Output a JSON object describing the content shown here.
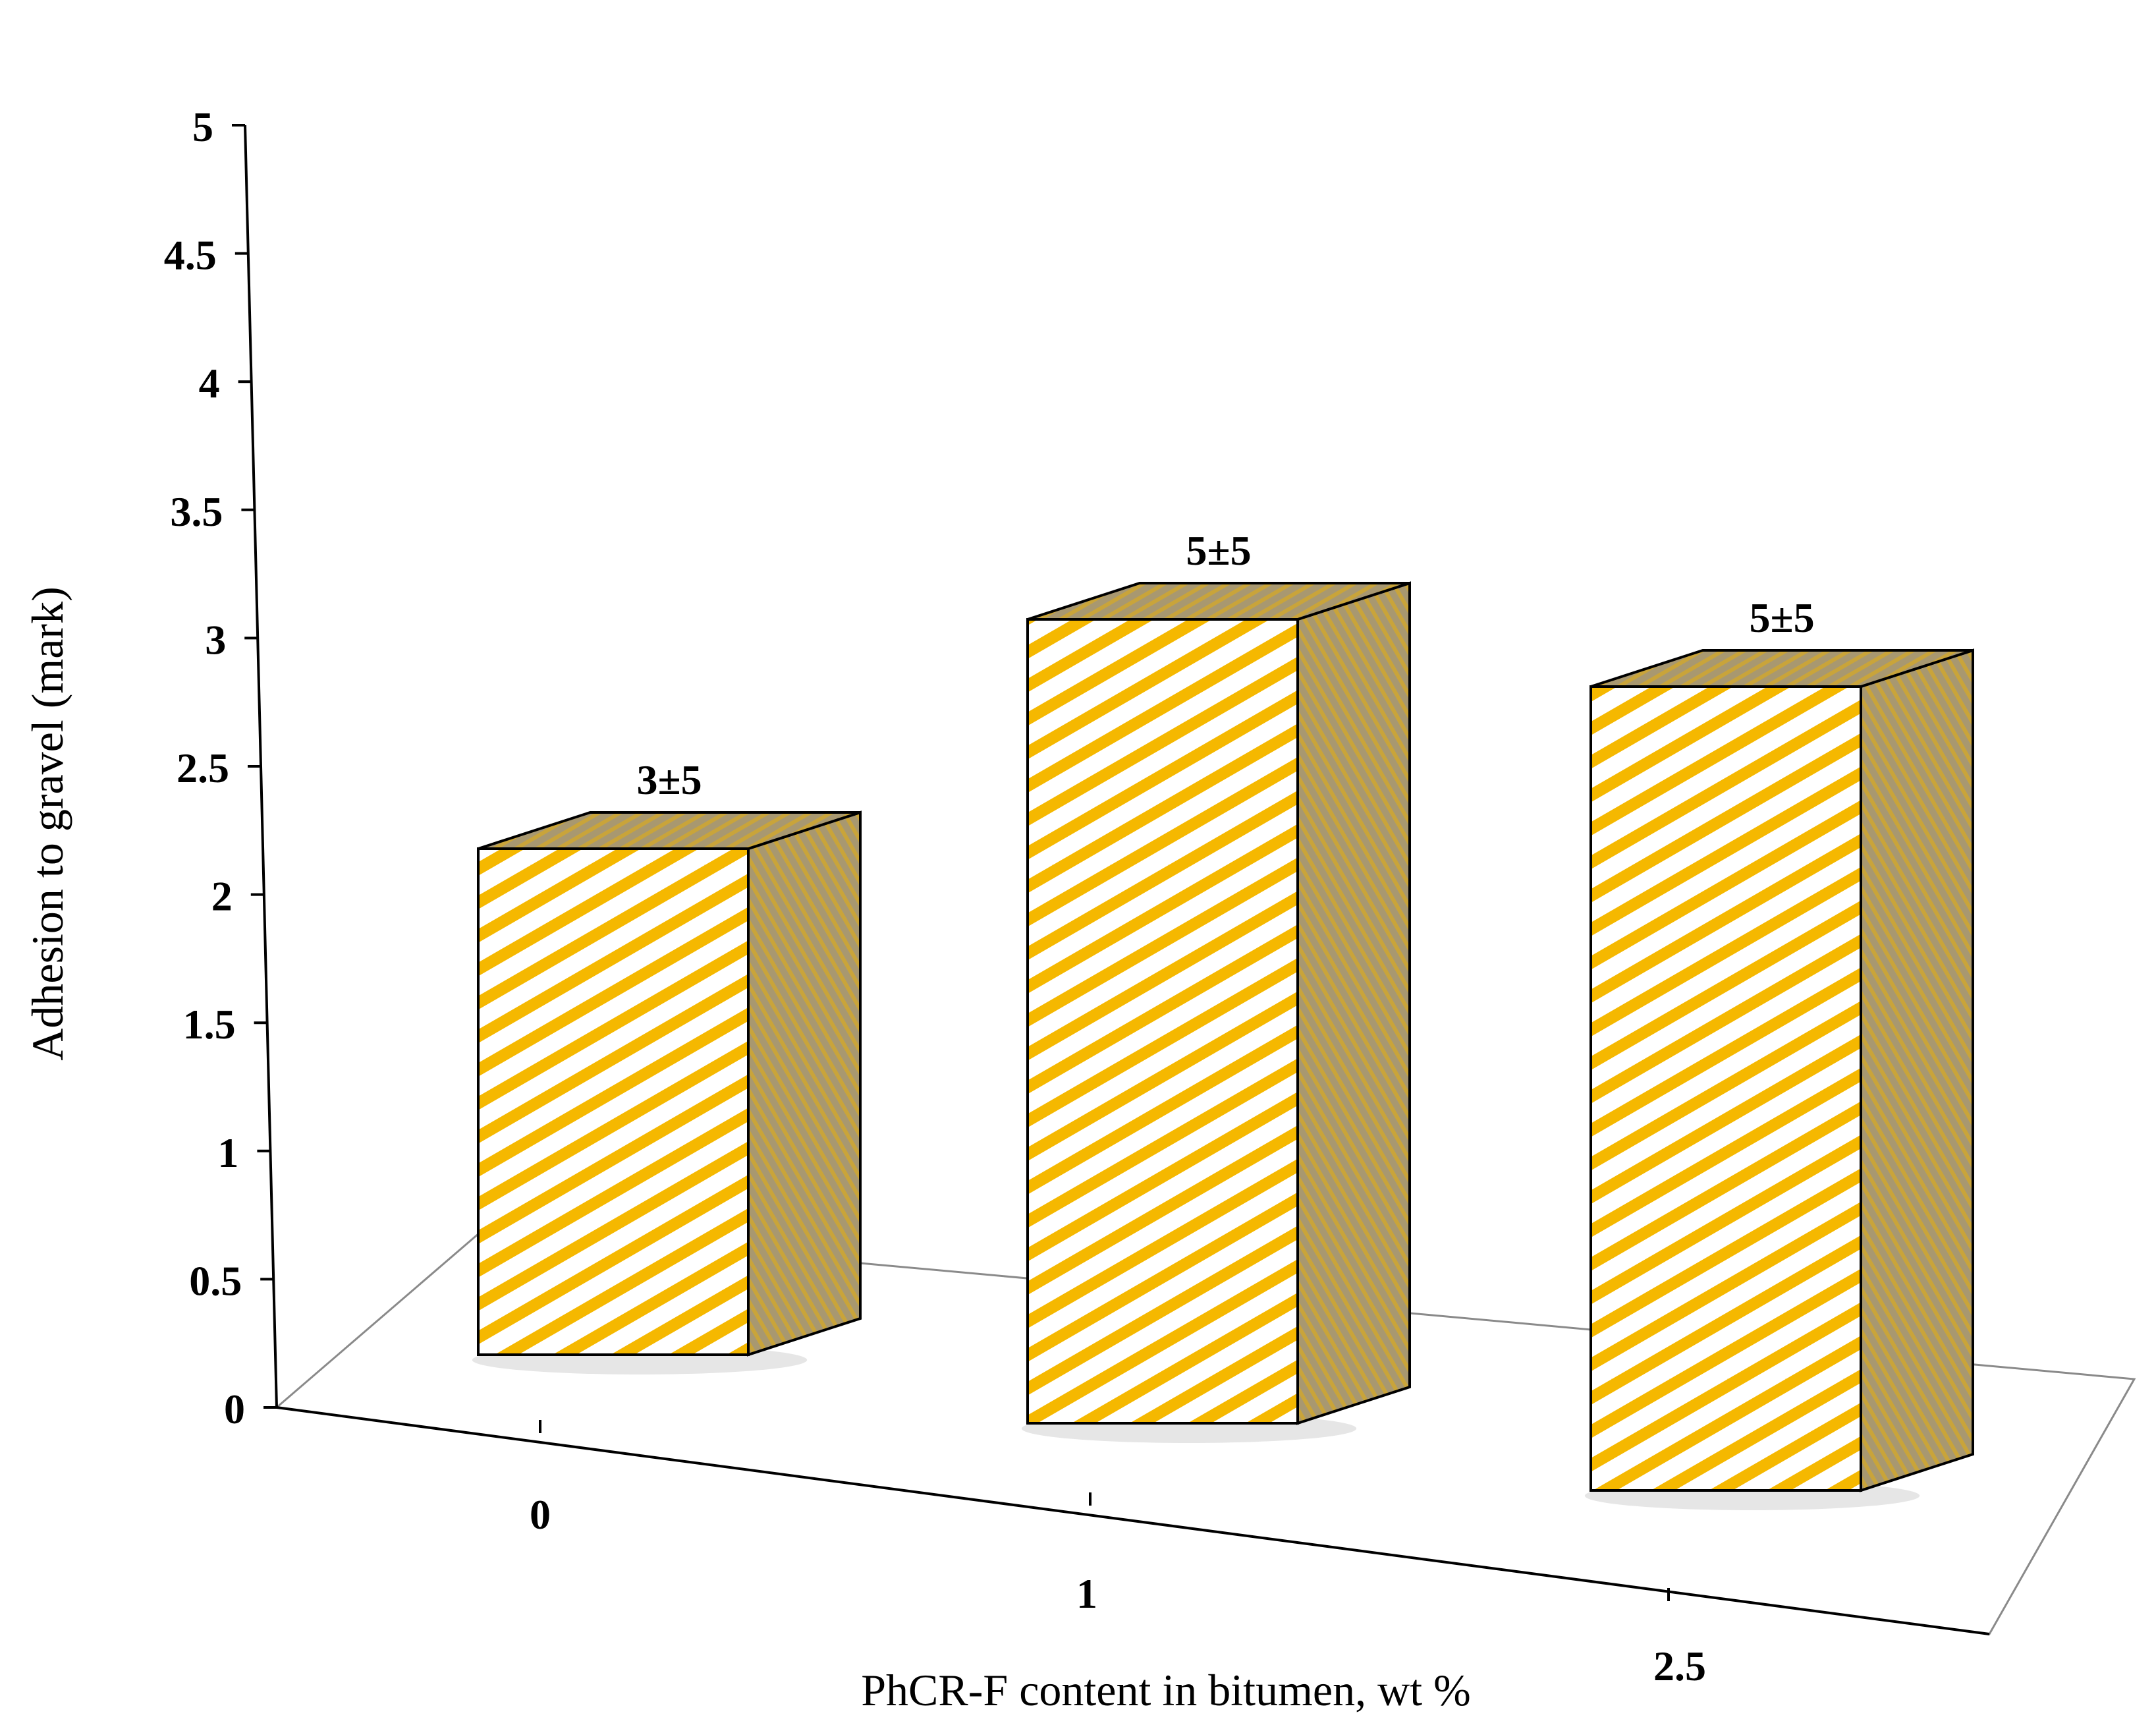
{
  "chart_data": {
    "type": "bar",
    "style": "3d-hatched",
    "categories": [
      "0",
      "1",
      "2.5"
    ],
    "values": [
      3,
      5,
      5
    ],
    "data_labels": [
      "3±5",
      "5±5",
      "5±5"
    ],
    "title": "",
    "xlabel": "PhCR-F content in bitumen, wt %",
    "ylabel": "Adhesion to gravel (mark)",
    "ylim": [
      0,
      5
    ],
    "yticks": [
      "0",
      "0.5",
      "1",
      "1.5",
      "2",
      "2.5",
      "3",
      "3.5",
      "4",
      "4.5",
      "5"
    ],
    "grid": false,
    "legend": "none",
    "colors": {
      "front_stripe": "#f5b800",
      "front_base": "#ffffff",
      "side_fill": "#a89870",
      "side_stripe": "#c9a43a",
      "floor_line": "#8a8a8a",
      "outline": "#000000"
    }
  }
}
